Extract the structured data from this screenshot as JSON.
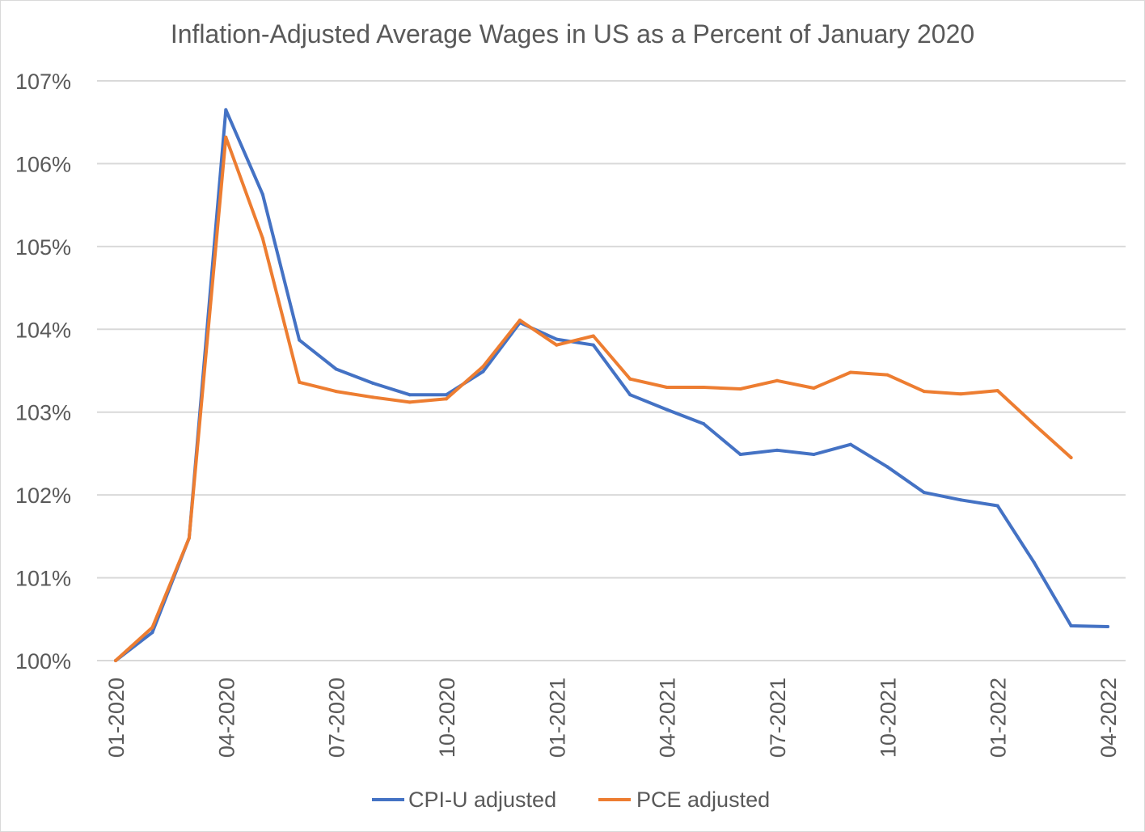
{
  "chart_data": {
    "type": "line",
    "title": "Inflation-Adjusted Average Wages in US as a Percent of January 2020",
    "xlabel": "",
    "ylabel": "",
    "x": [
      "01-2020",
      "02-2020",
      "03-2020",
      "04-2020",
      "05-2020",
      "06-2020",
      "07-2020",
      "08-2020",
      "09-2020",
      "10-2020",
      "11-2020",
      "12-2020",
      "01-2021",
      "02-2021",
      "03-2021",
      "04-2021",
      "05-2021",
      "06-2021",
      "07-2021",
      "08-2021",
      "09-2021",
      "10-2021",
      "11-2021",
      "12-2021",
      "01-2022",
      "02-2022",
      "03-2022",
      "04-2022"
    ],
    "x_tick_labels": [
      "01-2020",
      "04-2020",
      "07-2020",
      "10-2020",
      "01-2021",
      "04-2021",
      "07-2021",
      "10-2021",
      "01-2022",
      "04-2022"
    ],
    "y_tick_labels": [
      "100%",
      "101%",
      "102%",
      "103%",
      "104%",
      "105%",
      "106%",
      "107%"
    ],
    "ylim": [
      100,
      107
    ],
    "grid": "horizontal",
    "legend_position": "bottom",
    "series": [
      {
        "name": "CPI-U adjusted",
        "color": "#4472c4",
        "values": [
          100.0,
          100.34,
          101.48,
          106.65,
          105.63,
          103.87,
          103.52,
          103.35,
          103.21,
          103.21,
          103.49,
          104.08,
          103.88,
          103.81,
          103.21,
          103.03,
          102.86,
          102.49,
          102.54,
          102.49,
          102.61,
          102.34,
          102.03,
          101.94,
          101.87,
          101.18,
          100.42,
          100.41
        ]
      },
      {
        "name": "PCE adjusted",
        "color": "#ed7d31",
        "values": [
          100.0,
          100.4,
          101.48,
          106.32,
          105.1,
          103.36,
          103.25,
          103.18,
          103.12,
          103.16,
          103.55,
          104.11,
          103.81,
          103.92,
          103.4,
          103.3,
          103.3,
          103.28,
          103.38,
          103.29,
          103.48,
          103.45,
          103.25,
          103.22,
          103.26,
          102.85,
          102.45,
          null
        ]
      }
    ]
  }
}
